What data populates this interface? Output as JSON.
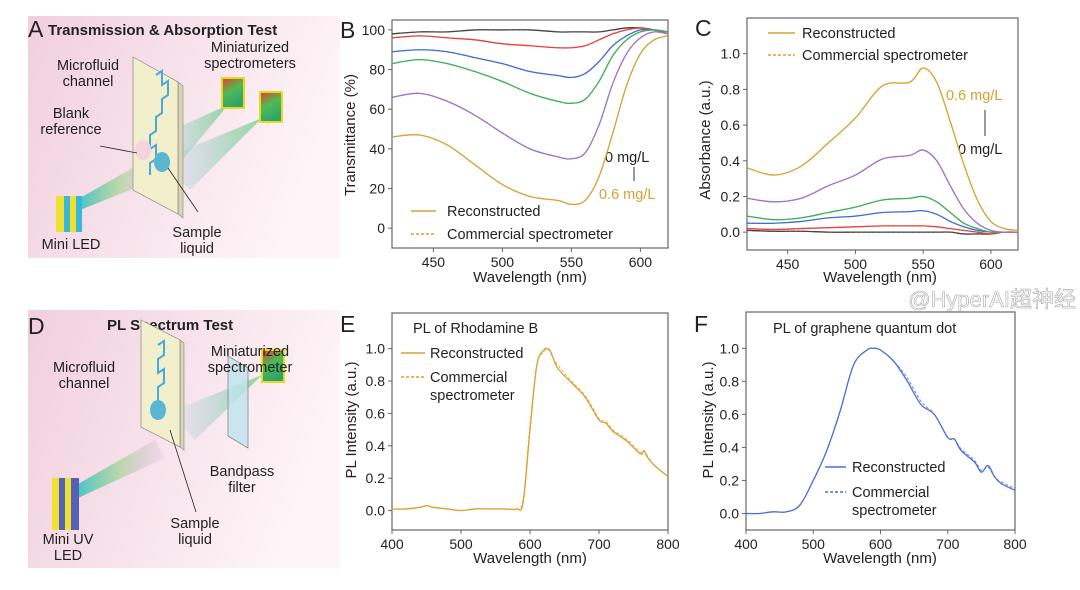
{
  "panel_a": {
    "letter": "A",
    "title": "Transmission & Absorption Test",
    "labels": {
      "microfluid_1": "Microfluid",
      "microfluid_2": "channel",
      "spectrometers_1": "Miniaturized",
      "spectrometers_2": "spectrometers",
      "blank_1": "Blank",
      "blank_2": "reference",
      "led": "Mini LED",
      "sample_1": "Sample",
      "sample_2": "liquid"
    },
    "background_color": "#f5dbe6"
  },
  "panel_d": {
    "letter": "D",
    "title": "PL Spectrum Test",
    "labels": {
      "microfluid_1": "Microfluid",
      "microfluid_2": "channel",
      "spectrometer_1": "Miniaturized",
      "spectrometer_2": "spectrometer",
      "filter_1": "Bandpass",
      "filter_2": "filter",
      "led_1": "Mini UV",
      "led_2": "LED",
      "sample_1": "Sample",
      "sample_2": "liquid"
    }
  },
  "watermark": "@HyperAI超神经",
  "chart_data": [
    {
      "panel": "B",
      "type": "line",
      "title": "",
      "xlabel": "Wavelength (nm)",
      "ylabel": "Transmittance (%)",
      "xlim": [
        420,
        620
      ],
      "ylim": [
        -10,
        105
      ],
      "xticks": [
        450,
        500,
        550,
        600
      ],
      "yticks": [
        0,
        20,
        40,
        60,
        80,
        100
      ],
      "grid": false,
      "legend": {
        "position": "bottom-left",
        "reconstructed": "Reconstructed",
        "commercial": "Commercial spectrometer",
        "reconstructed_style": "solid",
        "commercial_style": "dashed"
      },
      "annotations": {
        "low": "0 mg/L",
        "high": "0.6 mg/L",
        "arrow": "down"
      },
      "x": [
        420,
        440,
        460,
        480,
        500,
        520,
        540,
        550,
        560,
        570,
        580,
        590,
        600,
        610,
        620
      ],
      "series": [
        {
          "color": "#444444",
          "reconstructed": [
            98,
            99,
            99,
            100,
            100,
            100,
            99,
            99,
            99,
            99,
            100,
            101,
            101,
            100,
            99
          ],
          "commercial": [
            98,
            99,
            99,
            100,
            100,
            100,
            99,
            99,
            99,
            99,
            100,
            101,
            101,
            100,
            99
          ]
        },
        {
          "color": "#e8413c",
          "reconstructed": [
            96,
            97,
            96,
            95,
            93,
            92,
            91,
            91,
            92,
            95,
            98,
            100,
            101,
            100,
            98
          ],
          "commercial": [
            96,
            97,
            96,
            95,
            93,
            92,
            91,
            91,
            92,
            95,
            98,
            100,
            101,
            100,
            98
          ]
        },
        {
          "color": "#3f6fd0",
          "reconstructed": [
            89,
            90,
            89,
            86,
            83,
            79,
            77,
            76,
            78,
            84,
            92,
            97,
            100,
            100,
            99
          ],
          "commercial": [
            89,
            90,
            89,
            86,
            83,
            79,
            77,
            76,
            78,
            84,
            92,
            97,
            100,
            100,
            99
          ]
        },
        {
          "color": "#3fae5a",
          "reconstructed": [
            83,
            85,
            83,
            79,
            74,
            68,
            64,
            63,
            65,
            74,
            87,
            95,
            99,
            100,
            99
          ],
          "commercial": [
            83,
            85,
            83,
            79,
            74,
            68,
            64,
            63,
            65,
            74,
            87,
            95,
            99,
            100,
            99
          ]
        },
        {
          "color": "#a070c8",
          "reconstructed": [
            66,
            68,
            64,
            57,
            48,
            40,
            36,
            35,
            38,
            52,
            73,
            88,
            96,
            99,
            98
          ],
          "commercial": [
            66,
            68,
            64,
            57,
            48,
            40,
            36,
            35,
            38,
            52,
            73,
            88,
            96,
            99,
            98
          ]
        },
        {
          "color": "#d9a030",
          "reconstructed": [
            46,
            47,
            42,
            32,
            22,
            16,
            14,
            12,
            14,
            26,
            48,
            72,
            88,
            95,
            97
          ],
          "commercial": [
            46,
            47,
            42,
            32,
            22,
            16,
            14,
            12,
            14,
            26,
            48,
            72,
            88,
            95,
            97
          ]
        }
      ]
    },
    {
      "panel": "C",
      "type": "line",
      "title": "",
      "xlabel": "Wavelength (nm)",
      "ylabel": "Absorbance (a.u.)",
      "xlim": [
        420,
        620
      ],
      "ylim": [
        -0.1,
        1.2
      ],
      "xticks": [
        450,
        500,
        550,
        600
      ],
      "yticks": [
        "0.0",
        "0.2",
        "0.4",
        "0.6",
        "0.8",
        "1.0"
      ],
      "grid": false,
      "legend": {
        "position": "top-left",
        "reconstructed": "Reconstructed",
        "commercial": "Commercial spectrometer",
        "reconstructed_style": "solid",
        "commercial_style": "dashed"
      },
      "annotations": {
        "low": "0 mg/L",
        "high": "0.6 mg/L",
        "arrow": "up"
      },
      "x": [
        420,
        440,
        460,
        480,
        500,
        520,
        540,
        550,
        560,
        570,
        580,
        590,
        600,
        610,
        620
      ],
      "series": [
        {
          "color": "#444444",
          "reconstructed": [
            0.01,
            0.005,
            0.005,
            0,
            0,
            0,
            0,
            0,
            0,
            0,
            -0.01,
            -0.01,
            -0.01,
            0,
            0
          ],
          "commercial": [
            0.01,
            0.005,
            0.005,
            0,
            0,
            0,
            0,
            0,
            0,
            0,
            -0.01,
            -0.01,
            -0.01,
            0,
            0
          ]
        },
        {
          "color": "#e8413c",
          "reconstructed": [
            0.02,
            0.015,
            0.02,
            0.025,
            0.03,
            0.035,
            0.035,
            0.035,
            0.03,
            0.02,
            0.01,
            0,
            -0.01,
            0,
            0
          ],
          "commercial": [
            0.02,
            0.015,
            0.02,
            0.025,
            0.03,
            0.035,
            0.035,
            0.035,
            0.03,
            0.02,
            0.01,
            0,
            -0.01,
            0,
            0
          ]
        },
        {
          "color": "#3f6fd0",
          "reconstructed": [
            0.05,
            0.05,
            0.06,
            0.08,
            0.09,
            0.11,
            0.115,
            0.12,
            0.1,
            0.06,
            0.03,
            0.01,
            0,
            0,
            0
          ],
          "commercial": [
            0.05,
            0.05,
            0.06,
            0.08,
            0.09,
            0.11,
            0.115,
            0.12,
            0.1,
            0.06,
            0.03,
            0.01,
            0,
            0,
            0
          ]
        },
        {
          "color": "#3fae5a",
          "reconstructed": [
            0.09,
            0.07,
            0.08,
            0.11,
            0.14,
            0.18,
            0.19,
            0.2,
            0.17,
            0.11,
            0.05,
            0.02,
            0,
            0,
            0
          ],
          "commercial": [
            0.09,
            0.07,
            0.08,
            0.11,
            0.14,
            0.18,
            0.19,
            0.2,
            0.17,
            0.11,
            0.05,
            0.02,
            0,
            0,
            0
          ]
        },
        {
          "color": "#a070c8",
          "reconstructed": [
            0.19,
            0.17,
            0.19,
            0.26,
            0.32,
            0.41,
            0.43,
            0.46,
            0.4,
            0.26,
            0.13,
            0.05,
            0.01,
            0,
            0
          ],
          "commercial": [
            0.19,
            0.17,
            0.19,
            0.26,
            0.32,
            0.41,
            0.43,
            0.46,
            0.4,
            0.26,
            0.13,
            0.05,
            0.01,
            0,
            0
          ]
        },
        {
          "color": "#d9a030",
          "reconstructed": [
            0.36,
            0.32,
            0.37,
            0.5,
            0.64,
            0.82,
            0.84,
            0.92,
            0.84,
            0.62,
            0.38,
            0.18,
            0.06,
            0.02,
            0.01
          ],
          "commercial": [
            0.36,
            0.32,
            0.37,
            0.5,
            0.64,
            0.82,
            0.84,
            0.92,
            0.84,
            0.62,
            0.38,
            0.18,
            0.06,
            0.02,
            0.01
          ]
        }
      ]
    },
    {
      "panel": "E",
      "type": "line",
      "title": "PL of Rhodamine B",
      "xlabel": "Wavelength (nm)",
      "ylabel": "PL Intensity (a.u.)",
      "xlim": [
        400,
        800
      ],
      "ylim": [
        -0.12,
        1.22
      ],
      "xticks": [
        400,
        500,
        600,
        700,
        800
      ],
      "yticks": [
        "0.0",
        "0.2",
        "0.4",
        "0.6",
        "0.8",
        "1.0"
      ],
      "grid": false,
      "legend": {
        "position": "top-left",
        "reconstructed": "Reconstructed",
        "commercial_1": "Commercial",
        "commercial_2": "spectrometer",
        "reconstructed_style": "solid",
        "commercial_style": "dashed"
      },
      "x": [
        400,
        420,
        440,
        450,
        460,
        480,
        500,
        520,
        540,
        560,
        580,
        590,
        600,
        610,
        620,
        625,
        630,
        640,
        660,
        680,
        700,
        710,
        720,
        740,
        760,
        765,
        770,
        780,
        800
      ],
      "series": [
        {
          "color": "#d9a030",
          "reconstructed": [
            0.01,
            0.01,
            0.02,
            0.03,
            0.02,
            0.01,
            0,
            0.01,
            0.01,
            0.01,
            0.01,
            0.05,
            0.5,
            0.9,
            0.99,
            1.0,
            0.98,
            0.88,
            0.79,
            0.7,
            0.56,
            0.54,
            0.49,
            0.43,
            0.35,
            0.37,
            0.33,
            0.28,
            0.21
          ],
          "commercial": [
            0.01,
            0.01,
            0.02,
            0.03,
            0.02,
            0.01,
            0,
            0.01,
            0.01,
            0.01,
            0.01,
            0.07,
            0.53,
            0.9,
            0.98,
            1.0,
            0.97,
            0.9,
            0.8,
            0.71,
            0.57,
            0.55,
            0.5,
            0.44,
            0.36,
            0.37,
            0.34,
            0.28,
            0.21
          ]
        }
      ]
    },
    {
      "panel": "F",
      "type": "line",
      "title": "PL of graphene quantum dot",
      "xlabel": "Wavelength (nm)",
      "ylabel": "PL Intensity (a.u.)",
      "xlim": [
        400,
        800
      ],
      "ylim": [
        -0.1,
        1.22
      ],
      "xticks": [
        400,
        500,
        600,
        700,
        800
      ],
      "yticks": [
        "0.0",
        "0.2",
        "0.4",
        "0.6",
        "0.8",
        "1.0"
      ],
      "grid": false,
      "legend": {
        "position": "bottom-center",
        "reconstructed": "Reconstructed",
        "commercial_1": "Commercial",
        "commercial_2": "spectrometer",
        "reconstructed_style": "solid",
        "commercial_style": "dashed"
      },
      "x": [
        400,
        420,
        440,
        460,
        480,
        500,
        520,
        540,
        560,
        580,
        590,
        600,
        620,
        640,
        660,
        680,
        700,
        710,
        720,
        740,
        750,
        760,
        770,
        780,
        800
      ],
      "series": [
        {
          "color": "#4a6fd6",
          "reconstructed": [
            0,
            0,
            0.01,
            0.01,
            0.05,
            0.2,
            0.38,
            0.62,
            0.9,
            0.99,
            1.0,
            0.99,
            0.92,
            0.8,
            0.66,
            0.6,
            0.46,
            0.45,
            0.38,
            0.31,
            0.25,
            0.29,
            0.22,
            0.18,
            0.14
          ],
          "commercial": [
            0,
            0,
            0.01,
            0.01,
            0.05,
            0.2,
            0.38,
            0.62,
            0.9,
            0.99,
            1.0,
            0.99,
            0.92,
            0.82,
            0.68,
            0.6,
            0.46,
            0.45,
            0.39,
            0.32,
            0.26,
            0.28,
            0.22,
            0.19,
            0.15
          ]
        }
      ]
    }
  ]
}
